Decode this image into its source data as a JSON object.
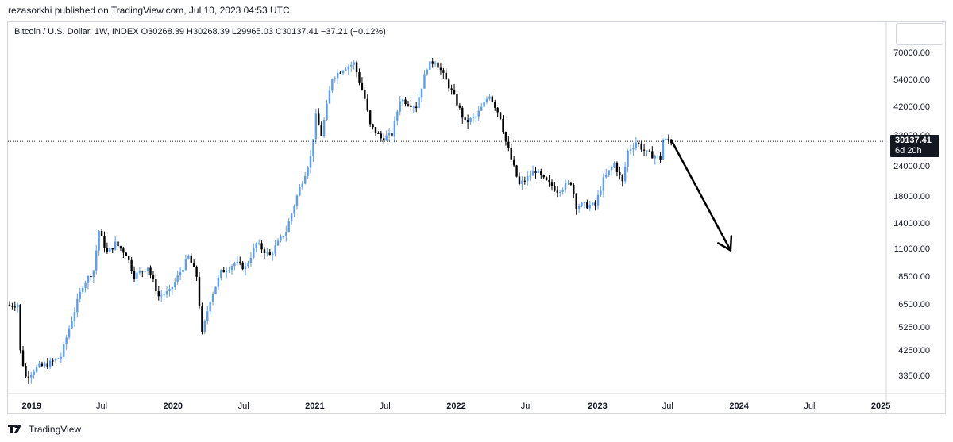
{
  "header": {
    "publisher": "rezasorkhi published on TradingView.com, Jul 10, 2023 04:53 UTC"
  },
  "legend": {
    "symbol": "Bitcoin / U.S. Dollar, 1W, INDEX",
    "ohlc": "O30268.39  H30268.39  L29965.03  C30137.41  −37.21 (−0.12%)"
  },
  "price_label": {
    "price": "30137.41",
    "countdown": "6d 20h"
  },
  "footer": {
    "brand": "TradingView"
  },
  "colors": {
    "up": "#5b9cf6",
    "down": "#000000",
    "grid_border": "#d1d4dc",
    "text": "#131722"
  },
  "chart_data": {
    "type": "candlestick",
    "title": "Bitcoin / U.S. Dollar, 1W, INDEX",
    "y_scale": "log",
    "y_ticks": [
      3350,
      4250,
      5250,
      6500,
      8500,
      11000,
      14000,
      18000,
      24000,
      32000,
      42000,
      54000,
      70000
    ],
    "y_tick_labels": [
      "3350.00",
      "4250.00",
      "5250.00",
      "6500.00",
      "8500.00",
      "11000.00",
      "14000.00",
      "18000.00",
      "24000.00",
      "32000.00",
      "42000.00",
      "54000.00",
      "70000.00"
    ],
    "x_range": [
      "2018-11-01",
      "2025-01-15"
    ],
    "x_ticks": [
      {
        "date": "2019-01-01",
        "label": "2019",
        "bold": true
      },
      {
        "date": "2019-07-01",
        "label": "Jul",
        "bold": false
      },
      {
        "date": "2020-01-01",
        "label": "2020",
        "bold": true
      },
      {
        "date": "2020-07-01",
        "label": "Jul",
        "bold": false
      },
      {
        "date": "2021-01-01",
        "label": "2021",
        "bold": true
      },
      {
        "date": "2021-07-01",
        "label": "Jul",
        "bold": false
      },
      {
        "date": "2022-01-01",
        "label": "2022",
        "bold": true
      },
      {
        "date": "2022-07-01",
        "label": "Jul",
        "bold": false
      },
      {
        "date": "2023-01-01",
        "label": "2023",
        "bold": true
      },
      {
        "date": "2023-07-01",
        "label": "Jul",
        "bold": false
      },
      {
        "date": "2024-01-01",
        "label": "2024",
        "bold": true
      },
      {
        "date": "2024-07-01",
        "label": "Jul",
        "bold": false
      },
      {
        "date": "2025-01-01",
        "label": "2025",
        "bold": true
      }
    ],
    "current_price": 30137.41,
    "arrow": {
      "from": [
        "2023-07-10",
        30500
      ],
      "to": [
        "2023-12-10",
        10800
      ]
    },
    "closes": [
      [
        "2018-11-05",
        6400
      ],
      [
        "2018-11-26",
        6500
      ],
      [
        "2018-12-03",
        4200
      ],
      [
        "2018-12-17",
        3300
      ],
      [
        "2019-01-14",
        3600
      ],
      [
        "2019-02-11",
        3700
      ],
      [
        "2019-03-18",
        4000
      ],
      [
        "2019-04-08",
        5200
      ],
      [
        "2019-05-13",
        7800
      ],
      [
        "2019-06-10",
        9000
      ],
      [
        "2019-06-24",
        13000
      ],
      [
        "2019-07-15",
        10500
      ],
      [
        "2019-08-05",
        11500
      ],
      [
        "2019-09-02",
        10500
      ],
      [
        "2019-09-23",
        8500
      ],
      [
        "2019-10-28",
        9300
      ],
      [
        "2019-11-25",
        7000
      ],
      [
        "2019-12-23",
        7300
      ],
      [
        "2020-02-10",
        10200
      ],
      [
        "2020-03-02",
        8500
      ],
      [
        "2020-03-16",
        4900
      ],
      [
        "2020-04-06",
        6800
      ],
      [
        "2020-05-04",
        8800
      ],
      [
        "2020-06-08",
        9600
      ],
      [
        "2020-07-06",
        9200
      ],
      [
        "2020-08-03",
        11500
      ],
      [
        "2020-09-07",
        10300
      ],
      [
        "2020-10-19",
        13000
      ],
      [
        "2020-11-16",
        18000
      ],
      [
        "2020-12-21",
        26000
      ],
      [
        "2021-01-04",
        38000
      ],
      [
        "2021-01-18",
        32000
      ],
      [
        "2021-02-15",
        55000
      ],
      [
        "2021-03-15",
        60000
      ],
      [
        "2021-04-12",
        63000
      ],
      [
        "2021-05-10",
        45000
      ],
      [
        "2021-05-24",
        35000
      ],
      [
        "2021-06-21",
        31000
      ],
      [
        "2021-07-19",
        32000
      ],
      [
        "2021-08-09",
        45000
      ],
      [
        "2021-09-20",
        42000
      ],
      [
        "2021-10-18",
        61000
      ],
      [
        "2021-11-08",
        65000
      ],
      [
        "2021-11-29",
        56000
      ],
      [
        "2021-12-27",
        46000
      ],
      [
        "2022-01-24",
        36000
      ],
      [
        "2022-02-21",
        38000
      ],
      [
        "2022-03-28",
        47000
      ],
      [
        "2022-04-25",
        38000
      ],
      [
        "2022-05-09",
        30000
      ],
      [
        "2022-06-13",
        20000
      ],
      [
        "2022-07-25",
        23000
      ],
      [
        "2022-08-15",
        21000
      ],
      [
        "2022-09-19",
        19000
      ],
      [
        "2022-10-24",
        20500
      ],
      [
        "2022-11-07",
        16500
      ],
      [
        "2022-12-26",
        16500
      ],
      [
        "2023-01-16",
        21000
      ],
      [
        "2023-02-13",
        24500
      ],
      [
        "2023-03-06",
        20500
      ],
      [
        "2023-03-20",
        27500
      ],
      [
        "2023-04-10",
        30000
      ],
      [
        "2023-05-08",
        27000
      ],
      [
        "2023-06-12",
        25800
      ],
      [
        "2023-06-19",
        30500
      ],
      [
        "2023-07-10",
        30137
      ]
    ]
  }
}
